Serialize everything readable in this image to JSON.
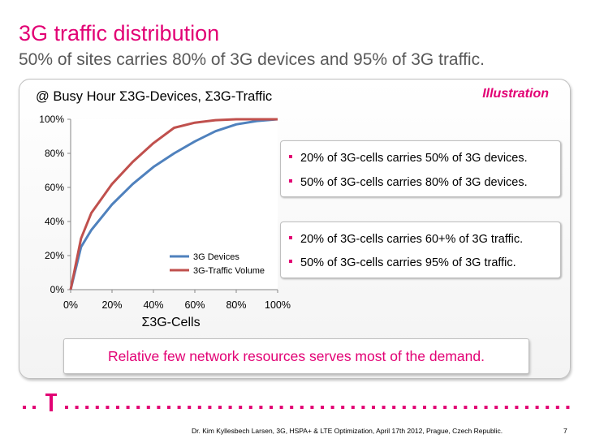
{
  "slide": {
    "title": "3G traffic distribution",
    "subtitle": "50% of sites carries 80% of 3G devices and 95% of 3G traffic.",
    "panel_heading": "@ Busy Hour Σ3G-Devices, Σ3G-Traffic",
    "illustration_label": "Illustration",
    "box1": [
      "20% of 3G-cells carries 50% of 3G devices.",
      "50% of 3G-cells carries 80% of 3G devices."
    ],
    "box2": [
      "20% of 3G-cells carries 60+% of 3G traffic.",
      "50% of 3G-cells carries 95% of 3G traffic."
    ],
    "conclusion": "Relative few network resources serves most of the demand.",
    "footer": "Dr. Kim Kyllesbech Larsen, 3G, HSPA+ & LTE Optimization, April 17th 2012, Prague, Czech Republic.",
    "page_number": "7",
    "logo": "T",
    "colors": {
      "magenta": "#e20074",
      "devices": "#4f81bd",
      "traffic": "#c0504d"
    }
  },
  "chart_data": {
    "type": "line",
    "title": "",
    "xlabel": "Σ3G-Cells",
    "ylabel": "",
    "xlim": [
      0,
      100
    ],
    "ylim": [
      0,
      100
    ],
    "x_ticks": [
      "0%",
      "20%",
      "40%",
      "60%",
      "80%",
      "100%"
    ],
    "y_ticks": [
      "0%",
      "20%",
      "40%",
      "60%",
      "80%",
      "100%"
    ],
    "legend_position": "bottom-right",
    "x": [
      0,
      5,
      10,
      20,
      30,
      40,
      50,
      60,
      70,
      80,
      90,
      100
    ],
    "series": [
      {
        "name": "3G Devices",
        "color": "#4f81bd",
        "values": [
          0,
          25,
          35,
          50,
          62,
          72,
          80,
          87,
          93,
          97,
          99,
          100
        ]
      },
      {
        "name": "3G-Traffic Volume",
        "color": "#c0504d",
        "values": [
          0,
          30,
          45,
          62,
          75,
          86,
          95,
          98,
          99.5,
          100,
          100,
          100
        ]
      }
    ]
  }
}
